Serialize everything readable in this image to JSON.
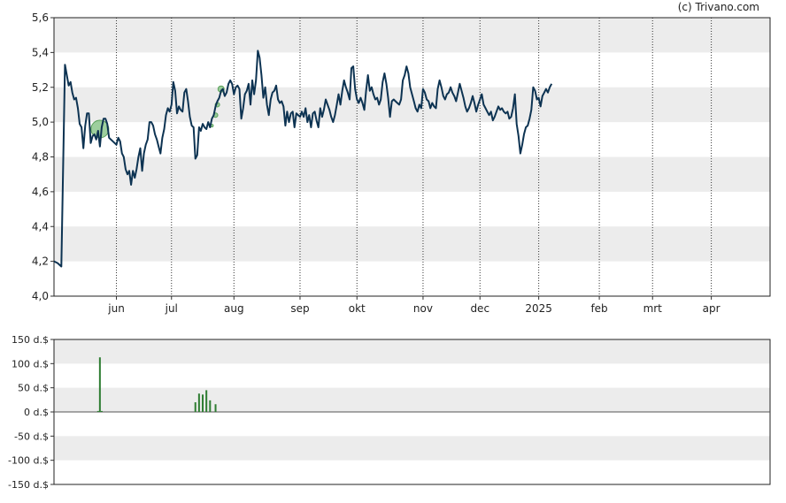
{
  "copyright": "(c) Trivano.com",
  "chart_data": [
    {
      "type": "line",
      "ylim": [
        4.0,
        5.6
      ],
      "yticks": [
        "4,0",
        "4,2",
        "4,4",
        "4,6",
        "4,8",
        "5,0",
        "5,2",
        "5,4",
        "5,6"
      ],
      "ytick_values": [
        4.0,
        4.2,
        4.4,
        4.6,
        4.8,
        5.0,
        5.2,
        5.4,
        5.6
      ],
      "xlim": [
        0,
        390
      ],
      "month_ticks": [
        {
          "label": "jun",
          "x": 34
        },
        {
          "label": "jul",
          "x": 64
        },
        {
          "label": "aug",
          "x": 98
        },
        {
          "label": "sep",
          "x": 134
        },
        {
          "label": "okt",
          "x": 165
        },
        {
          "label": "nov",
          "x": 201
        },
        {
          "label": "dec",
          "x": 232
        },
        {
          "label": "2025",
          "x": 264
        },
        {
          "label": "feb",
          "x": 297
        },
        {
          "label": "mrt",
          "x": 326
        },
        {
          "label": "apr",
          "x": 358
        }
      ],
      "grid": "horizontal bands + dotted vertical month lines",
      "series_color": "#0d3352",
      "values": [
        [
          0,
          4.2
        ],
        [
          2,
          4.19
        ],
        [
          4,
          4.17
        ],
        [
          6,
          5.33
        ],
        [
          8,
          5.21
        ],
        [
          9,
          5.23
        ],
        [
          10,
          5.17
        ],
        [
          11,
          5.13
        ],
        [
          12,
          5.14
        ],
        [
          13,
          5.08
        ],
        [
          14,
          4.99
        ],
        [
          15,
          4.97
        ],
        [
          16,
          4.85
        ],
        [
          17,
          4.98
        ],
        [
          18,
          5.05
        ],
        [
          19,
          5.05
        ],
        [
          20,
          4.88
        ],
        [
          21,
          4.92
        ],
        [
          22,
          4.93
        ],
        [
          23,
          4.9
        ],
        [
          24,
          4.95
        ],
        [
          25,
          4.86
        ],
        [
          26,
          4.97
        ],
        [
          27,
          5.02
        ],
        [
          28,
          5.02
        ],
        [
          29,
          4.99
        ],
        [
          30,
          4.91
        ],
        [
          31,
          4.9
        ],
        [
          32,
          4.89
        ],
        [
          33,
          4.88
        ],
        [
          34,
          4.87
        ],
        [
          35,
          4.91
        ],
        [
          36,
          4.89
        ],
        [
          37,
          4.82
        ],
        [
          38,
          4.8
        ],
        [
          39,
          4.73
        ],
        [
          40,
          4.7
        ],
        [
          41,
          4.72
        ],
        [
          42,
          4.64
        ],
        [
          43,
          4.72
        ],
        [
          44,
          4.68
        ],
        [
          45,
          4.73
        ],
        [
          46,
          4.8
        ],
        [
          47,
          4.85
        ],
        [
          48,
          4.72
        ],
        [
          49,
          4.82
        ],
        [
          50,
          4.87
        ],
        [
          51,
          4.9
        ],
        [
          52,
          5.0
        ],
        [
          53,
          5.0
        ],
        [
          54,
          4.98
        ],
        [
          55,
          4.93
        ],
        [
          56,
          4.9
        ],
        [
          57,
          4.86
        ],
        [
          58,
          4.82
        ],
        [
          59,
          4.91
        ],
        [
          60,
          4.96
        ],
        [
          61,
          5.04
        ],
        [
          62,
          5.08
        ],
        [
          63,
          5.06
        ],
        [
          64,
          5.1
        ],
        [
          65,
          5.23
        ],
        [
          66,
          5.18
        ],
        [
          67,
          5.05
        ],
        [
          68,
          5.09
        ],
        [
          69,
          5.07
        ],
        [
          70,
          5.06
        ],
        [
          71,
          5.17
        ],
        [
          72,
          5.19
        ],
        [
          73,
          5.12
        ],
        [
          74,
          5.03
        ],
        [
          75,
          4.98
        ],
        [
          76,
          4.97
        ],
        [
          77,
          4.79
        ],
        [
          78,
          4.81
        ],
        [
          79,
          4.97
        ],
        [
          80,
          4.95
        ],
        [
          81,
          4.99
        ],
        [
          82,
          4.97
        ],
        [
          83,
          4.96
        ],
        [
          84,
          5.0
        ],
        [
          85,
          4.97
        ],
        [
          86,
          5.02
        ],
        [
          87,
          5.04
        ],
        [
          88,
          5.09
        ],
        [
          89,
          5.12
        ],
        [
          90,
          5.14
        ],
        [
          91,
          5.18
        ],
        [
          92,
          5.19
        ],
        [
          93,
          5.15
        ],
        [
          94,
          5.17
        ],
        [
          95,
          5.22
        ],
        [
          96,
          5.24
        ],
        [
          97,
          5.22
        ],
        [
          98,
          5.16
        ],
        [
          99,
          5.2
        ],
        [
          100,
          5.21
        ],
        [
          101,
          5.19
        ],
        [
          102,
          5.02
        ],
        [
          103,
          5.08
        ],
        [
          104,
          5.16
        ],
        [
          105,
          5.18
        ],
        [
          106,
          5.22
        ],
        [
          107,
          5.1
        ],
        [
          108,
          5.24
        ],
        [
          109,
          5.16
        ],
        [
          110,
          5.24
        ],
        [
          111,
          5.41
        ],
        [
          112,
          5.37
        ],
        [
          113,
          5.27
        ],
        [
          114,
          5.14
        ],
        [
          115,
          5.2
        ],
        [
          116,
          5.1
        ],
        [
          117,
          5.04
        ],
        [
          118,
          5.13
        ],
        [
          119,
          5.17
        ],
        [
          120,
          5.18
        ],
        [
          121,
          5.21
        ],
        [
          122,
          5.13
        ],
        [
          123,
          5.11
        ],
        [
          124,
          5.12
        ],
        [
          125,
          5.09
        ],
        [
          126,
          4.98
        ],
        [
          127,
          5.06
        ],
        [
          128,
          5.0
        ],
        [
          129,
          5.05
        ],
        [
          130,
          5.06
        ],
        [
          131,
          4.97
        ],
        [
          132,
          5.05
        ],
        [
          133,
          5.04
        ],
        [
          134,
          5.03
        ],
        [
          135,
          5.06
        ],
        [
          136,
          5.03
        ],
        [
          137,
          5.08
        ],
        [
          138,
          5.0
        ],
        [
          139,
          5.04
        ],
        [
          140,
          4.97
        ],
        [
          141,
          5.05
        ],
        [
          142,
          5.06
        ],
        [
          143,
          5.01
        ],
        [
          144,
          4.97
        ],
        [
          145,
          5.08
        ],
        [
          146,
          5.03
        ],
        [
          147,
          5.07
        ],
        [
          148,
          5.13
        ],
        [
          149,
          5.1
        ],
        [
          150,
          5.07
        ],
        [
          151,
          5.03
        ],
        [
          152,
          5.0
        ],
        [
          153,
          5.04
        ],
        [
          154,
          5.1
        ],
        [
          155,
          5.16
        ],
        [
          156,
          5.1
        ],
        [
          157,
          5.18
        ],
        [
          158,
          5.24
        ],
        [
          159,
          5.2
        ],
        [
          160,
          5.17
        ],
        [
          161,
          5.13
        ],
        [
          162,
          5.31
        ],
        [
          163,
          5.32
        ],
        [
          164,
          5.19
        ],
        [
          165,
          5.13
        ],
        [
          166,
          5.11
        ],
        [
          167,
          5.14
        ],
        [
          168,
          5.11
        ],
        [
          169,
          5.07
        ],
        [
          170,
          5.18
        ],
        [
          171,
          5.27
        ],
        [
          172,
          5.18
        ],
        [
          173,
          5.2
        ],
        [
          174,
          5.16
        ],
        [
          175,
          5.13
        ],
        [
          176,
          5.14
        ],
        [
          177,
          5.1
        ],
        [
          178,
          5.13
        ],
        [
          179,
          5.23
        ],
        [
          180,
          5.28
        ],
        [
          181,
          5.22
        ],
        [
          182,
          5.14
        ],
        [
          183,
          5.03
        ],
        [
          184,
          5.12
        ],
        [
          185,
          5.13
        ],
        [
          186,
          5.12
        ],
        [
          187,
          5.11
        ],
        [
          188,
          5.1
        ],
        [
          189,
          5.13
        ],
        [
          190,
          5.24
        ],
        [
          191,
          5.27
        ],
        [
          192,
          5.32
        ],
        [
          193,
          5.28
        ],
        [
          194,
          5.2
        ],
        [
          195,
          5.16
        ],
        [
          196,
          5.12
        ],
        [
          197,
          5.08
        ],
        [
          198,
          5.06
        ],
        [
          199,
          5.1
        ],
        [
          200,
          5.08
        ],
        [
          201,
          5.19
        ],
        [
          202,
          5.17
        ],
        [
          203,
          5.13
        ],
        [
          204,
          5.12
        ],
        [
          205,
          5.08
        ],
        [
          206,
          5.11
        ],
        [
          207,
          5.09
        ],
        [
          208,
          5.08
        ],
        [
          209,
          5.19
        ],
        [
          210,
          5.24
        ],
        [
          211,
          5.2
        ],
        [
          212,
          5.15
        ],
        [
          213,
          5.13
        ],
        [
          214,
          5.16
        ],
        [
          215,
          5.17
        ],
        [
          216,
          5.2
        ],
        [
          217,
          5.17
        ],
        [
          218,
          5.15
        ],
        [
          219,
          5.12
        ],
        [
          220,
          5.17
        ],
        [
          221,
          5.22
        ],
        [
          222,
          5.18
        ],
        [
          223,
          5.14
        ],
        [
          224,
          5.09
        ],
        [
          225,
          5.06
        ],
        [
          226,
          5.08
        ],
        [
          227,
          5.11
        ],
        [
          228,
          5.15
        ],
        [
          229,
          5.11
        ],
        [
          230,
          5.06
        ],
        [
          231,
          5.1
        ],
        [
          232,
          5.13
        ],
        [
          233,
          5.16
        ],
        [
          234,
          5.1
        ],
        [
          235,
          5.08
        ],
        [
          236,
          5.06
        ],
        [
          237,
          5.04
        ],
        [
          238,
          5.06
        ],
        [
          239,
          5.01
        ],
        [
          240,
          5.03
        ],
        [
          241,
          5.06
        ],
        [
          242,
          5.09
        ],
        [
          243,
          5.07
        ],
        [
          244,
          5.08
        ],
        [
          245,
          5.06
        ],
        [
          246,
          5.05
        ],
        [
          247,
          5.06
        ],
        [
          248,
          5.02
        ],
        [
          249,
          5.03
        ],
        [
          250,
          5.08
        ],
        [
          251,
          5.16
        ],
        [
          252,
          4.99
        ],
        [
          253,
          4.92
        ],
        [
          254,
          4.82
        ],
        [
          255,
          4.87
        ],
        [
          256,
          4.93
        ],
        [
          257,
          4.97
        ],
        [
          258,
          4.98
        ],
        [
          259,
          5.02
        ],
        [
          260,
          5.07
        ],
        [
          261,
          5.2
        ],
        [
          262,
          5.18
        ],
        [
          263,
          5.13
        ],
        [
          264,
          5.14
        ],
        [
          265,
          5.09
        ],
        [
          266,
          5.15
        ],
        [
          267,
          5.17
        ],
        [
          268,
          5.19
        ],
        [
          269,
          5.17
        ],
        [
          270,
          5.2
        ],
        [
          271,
          5.22
        ]
      ],
      "markers": [
        {
          "x": 25,
          "y": 4.96,
          "size": 10
        },
        {
          "x": 86,
          "y": 4.98,
          "size": 1.5
        },
        {
          "x": 88,
          "y": 5.04,
          "size": 2.5
        },
        {
          "x": 89,
          "y": 5.1,
          "size": 2.5
        },
        {
          "x": 91,
          "y": 5.19,
          "size": 3.5
        }
      ]
    },
    {
      "type": "bar",
      "ylim": [
        -150,
        150
      ],
      "yticks": [
        "150 d.$",
        "100 d.$",
        "50 d.$",
        "0 d.$",
        "-50 d.$",
        "-100 d.$",
        "-150 d.$"
      ],
      "ytick_values": [
        150,
        100,
        50,
        0,
        -50,
        -100,
        -150
      ],
      "values": [
        {
          "x": 24,
          "v": 2
        },
        {
          "x": 25,
          "v": 113
        },
        {
          "x": 26,
          "v": 2
        },
        {
          "x": 77,
          "v": 20
        },
        {
          "x": 79,
          "v": 38
        },
        {
          "x": 81,
          "v": 36
        },
        {
          "x": 83,
          "v": 45
        },
        {
          "x": 85,
          "v": 24
        },
        {
          "x": 88,
          "v": 16
        }
      ],
      "bar_color": "#2e7d32"
    }
  ]
}
